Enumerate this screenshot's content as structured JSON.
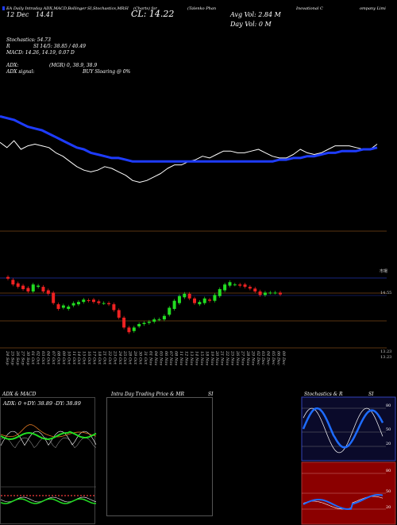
{
  "header": {
    "line1": [
      "EA Daily Intraday ADX,MACD,Bollinger",
      "SI,Stochastics,MRSI",
      "(Charts) for",
      "(Talenko Phan",
      "Inovational C",
      "ompany Limi"
    ],
    "line2": {
      "date": "12 Dec",
      "open": "14.41",
      "close": "CL: 14.22",
      "avg_vol": "Avg Vol: 2.84   M",
      "day_vol": "Day Vol: 0   M"
    }
  },
  "indicators": {
    "stoch_label": "Stochastics: 54.73",
    "stoch_r": "R",
    "si": "SI 14/5: 38.85 / 40.49",
    "macd": "MACD: 14.26, 14.19, 0.07 D",
    "adx_label": "ADX:",
    "adx_value": "(MGR) 0, 38.9, 38.9",
    "adx_signal_label": "ADX  signal:",
    "adx_signal_value": "BUY Sloaring @ 0%"
  },
  "price_axis": {
    "top_label": "市場",
    "mid_label": "14.55",
    "low_label1": "13.23",
    "low_label2": "13.23"
  },
  "x_labels": [
    "24 Sep",
    "25 Sep",
    "26 Sep",
    "27 Sep",
    "30 Sep",
    "01 Oct",
    "02 Oct",
    "03 Oct",
    "04 Oct",
    "07 Oct",
    "08 Oct",
    "09 Oct",
    "10 Oct",
    "11 Oct",
    "14 Oct",
    "15 Oct",
    "16 Oct",
    "17 Oct",
    "18 Oct",
    "21 Oct",
    "22 Oct",
    "23 Oct",
    "24 Oct",
    "25 Oct",
    "28 Oct",
    "29 Oct",
    "30 Oct",
    "31 Oct",
    "01 Nov",
    "04 Nov",
    "05 Nov",
    "06 Nov",
    "07 Nov",
    "08 Nov",
    "11 Nov",
    "12 Nov",
    "13 Nov",
    "14 Nov",
    "15 Nov",
    "18 Nov",
    "19 Nov",
    "20 Nov",
    "21 Nov",
    "22 Nov",
    "25 Nov",
    "26 Nov",
    "27 Nov",
    "28 Nov",
    "29 Nov",
    "02 Dec",
    "03 Dec",
    "04 Dec",
    "05 Dec",
    "06 Dec",
    "09 Dec"
  ],
  "panels": {
    "adx_macd_title": "ADX  & MACD",
    "adx_readout": "ADX: 0  +DY: 38.89  -DY: 38.89",
    "intraday_title": "Intra  Day Trading Price  & MR",
    "intraday_title2": "SI",
    "stoch_title": "Stochastics & R",
    "stoch_title2": "SI",
    "stoch_ticks": [
      "80",
      "50",
      "20"
    ],
    "rsi_ticks": [
      "80",
      "50",
      "20"
    ]
  },
  "colors": {
    "background": "#000000",
    "ma_line": "#1e3cff",
    "price_line": "#ffffff",
    "bull_candle": "#22dd22",
    "bear_candle": "#ee2222",
    "grid_orange": "#b3661f",
    "grid_blue": "#2233aa",
    "macd_green": "#22dd22",
    "macd_orange": "#dd7722",
    "rsi_bg": "#8b0000",
    "stoch_bg": "#0a0a2a"
  },
  "chart_data": [
    {
      "type": "line",
      "title": "",
      "series": [
        {
          "values": [
            13.97,
            13.94,
            13.98,
            13.93,
            13.95,
            13.96,
            13.95,
            13.94,
            13.91,
            13.89,
            13.86,
            13.83,
            13.81,
            13.8,
            13.81,
            13.83,
            13.82,
            13.8,
            13.78,
            13.75,
            13.74,
            13.75,
            13.77,
            13.79,
            13.82,
            13.84,
            13.84,
            13.86,
            13.87,
            13.89,
            13.88,
            13.9,
            13.92,
            13.92,
            13.91,
            13.91,
            13.92,
            13.93,
            13.91,
            13.89,
            13.88,
            13.88,
            13.9,
            13.93,
            13.91,
            13.9,
            13.91,
            13.93,
            13.95,
            13.95,
            13.95,
            13.94,
            13.93,
            13.93,
            13.96
          ]
        },
        {
          "values": [
            14.12,
            14.11,
            14.1,
            14.08,
            14.06,
            14.05,
            14.04,
            14.02,
            14.0,
            13.98,
            13.96,
            13.94,
            13.93,
            13.91,
            13.9,
            13.89,
            13.88,
            13.88,
            13.87,
            13.86,
            13.86,
            13.86,
            13.86,
            13.86,
            13.86,
            13.86,
            13.86,
            13.86,
            13.86,
            13.86,
            13.86,
            13.86,
            13.86,
            13.86,
            13.86,
            13.86,
            13.86,
            13.86,
            13.86,
            13.86,
            13.87,
            13.87,
            13.88,
            13.88,
            13.89,
            13.89,
            13.9,
            13.91,
            13.91,
            13.92,
            13.92,
            13.92,
            13.93,
            13.93,
            13.94
          ]
        }
      ]
    },
    {
      "type": "bar",
      "title": "",
      "categories": [
        "24 Sep",
        "25 Sep",
        "26 Sep",
        "27 Sep",
        "30 Sep",
        "01 Oct",
        "02 Oct",
        "03 Oct",
        "04 Oct",
        "07 Oct",
        "08 Oct",
        "09 Oct",
        "10 Oct",
        "11 Oct",
        "14 Oct",
        "15 Oct",
        "16 Oct",
        "17 Oct",
        "18 Oct",
        "21 Oct",
        "22 Oct",
        "23 Oct",
        "24 Oct",
        "25 Oct",
        "28 Oct",
        "29 Oct",
        "30 Oct",
        "31 Oct",
        "01 Nov",
        "04 Nov",
        "05 Nov",
        "06 Nov",
        "07 Nov",
        "08 Nov",
        "11 Nov",
        "12 Nov",
        "13 Nov",
        "14 Nov",
        "15 Nov",
        "18 Nov",
        "19 Nov",
        "20 Nov",
        "21 Nov",
        "22 Nov",
        "25 Nov",
        "26 Nov",
        "27 Nov",
        "28 Nov",
        "29 Nov",
        "02 Dec",
        "03 Dec",
        "04 Dec",
        "05 Dec",
        "06 Dec",
        "09 Dec"
      ],
      "series": [
        {
          "name": "open",
          "values": [
            14.75,
            14.7,
            14.64,
            14.6,
            14.56,
            14.5,
            14.58,
            14.58,
            14.52,
            14.48,
            14.28,
            14.22,
            14.2,
            14.26,
            14.28,
            14.32,
            14.35,
            14.36,
            14.33,
            14.3,
            14.3,
            14.28,
            14.18,
            14.05,
            13.88,
            13.82,
            13.9,
            13.94,
            13.96,
            13.98,
            14.02,
            14.02,
            14.1,
            14.2,
            14.3,
            14.4,
            14.46,
            14.38,
            14.28,
            14.3,
            14.36,
            14.34,
            14.42,
            14.52,
            14.6,
            14.62,
            14.62,
            14.62,
            14.58,
            14.55,
            14.5,
            14.44,
            14.48,
            14.48,
            14.48
          ]
        },
        {
          "name": "close",
          "values": [
            14.72,
            14.62,
            14.58,
            14.54,
            14.5,
            14.62,
            14.6,
            14.5,
            14.46,
            14.3,
            14.2,
            14.26,
            14.24,
            14.3,
            14.32,
            14.36,
            14.34,
            14.32,
            14.3,
            14.3,
            14.28,
            14.18,
            14.05,
            13.88,
            13.8,
            13.88,
            13.94,
            13.96,
            13.98,
            14.02,
            14.02,
            14.08,
            14.22,
            14.34,
            14.42,
            14.46,
            14.38,
            14.3,
            14.32,
            14.38,
            14.34,
            14.44,
            14.54,
            14.62,
            14.66,
            14.62,
            14.6,
            14.58,
            14.55,
            14.5,
            14.44,
            14.48,
            14.48,
            14.48,
            14.45
          ]
        }
      ],
      "ylim": [
        13.23,
        14.8
      ]
    }
  ]
}
